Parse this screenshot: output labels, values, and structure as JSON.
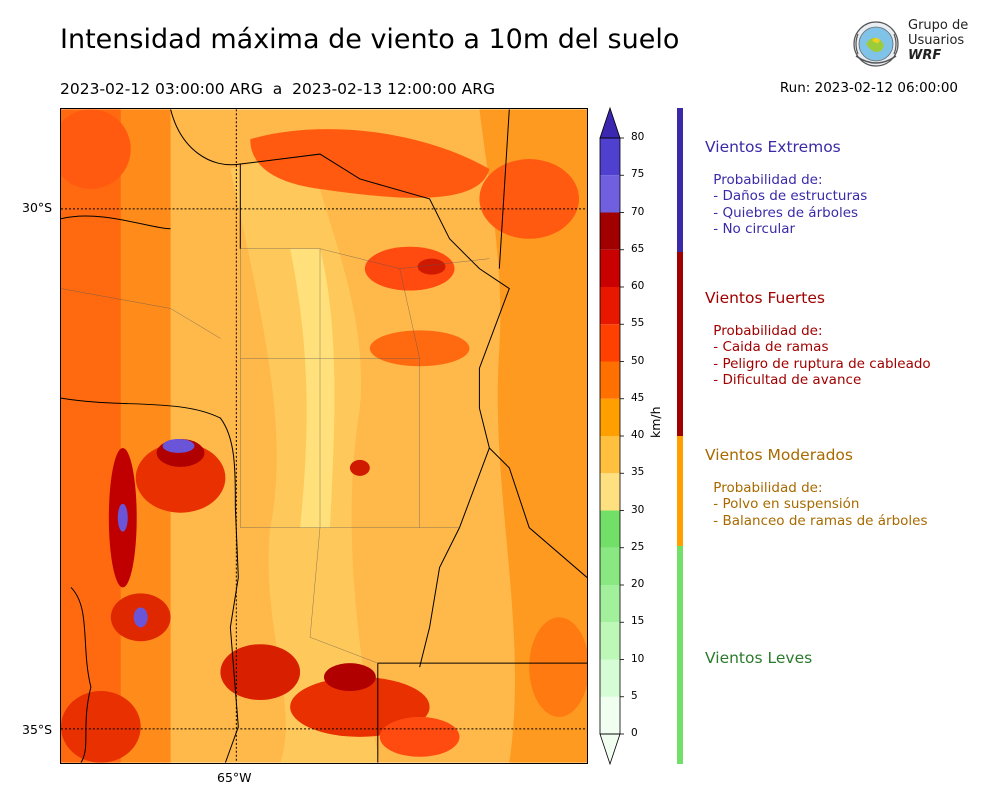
{
  "header": {
    "title": "Intensidad máxima de viento a 10m del suelo",
    "period": "2023-02-12 03:00:00 ARG  a  2023-02-13 12:00:00 ARG",
    "run": "Run: 2023-02-12 06:00:00"
  },
  "logo": {
    "line1": "Grupo de",
    "line2": "Usuarios",
    "line3": "WRF"
  },
  "map": {
    "lat_labels": [
      "30°S",
      "35°S"
    ],
    "lon_labels": [
      "65°W"
    ],
    "gridlines": "dotted"
  },
  "colorbar": {
    "unit": "km/h",
    "ticks": [
      "0",
      "5",
      "10",
      "15",
      "20",
      "25",
      "30",
      "35",
      "40",
      "45",
      "50",
      "55",
      "60",
      "65",
      "70",
      "75",
      "80"
    ],
    "colors": [
      "#f0fff0",
      "#d6fcd6",
      "#bdf8b8",
      "#a3f09c",
      "#8ae882",
      "#72e068",
      "#ffe080",
      "#ffc040",
      "#ffa000",
      "#ff7000",
      "#ff4000",
      "#e81800",
      "#c80000",
      "#a00000",
      "#7060e0",
      "#5040d0",
      "#3a28b0"
    ],
    "over_color": "#3a28b0",
    "under_color": "#f0fff0"
  },
  "categories": [
    {
      "title": "Vientos Extremos",
      "color": "#3a2aa8",
      "bar_color": "#3a2aa8",
      "desc": " Probabilidad de:\n - Daños de estructuras\n - Quiebres de árboles\n - No circular"
    },
    {
      "title": "Vientos Fuertes",
      "color": "#a00000",
      "bar_color": "#a00000",
      "desc": " Probabilidad de:\n - Caida de ramas\n - Peligro de ruptura de cableado\n - Dificultad de avance"
    },
    {
      "title": "Vientos Moderados",
      "color": "#a86a00",
      "bar_color": "#ffa000",
      "desc": " Probabilidad de:\n - Polvo en suspensión\n - Balanceo de ramas de árboles"
    },
    {
      "title": "Vientos Leves",
      "color": "#2c7a2c",
      "bar_color": "#72e068",
      "desc": ""
    }
  ]
}
